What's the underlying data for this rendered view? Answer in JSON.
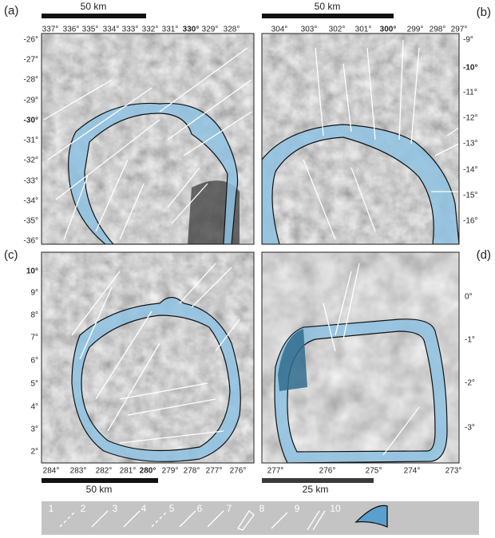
{
  "panels": [
    {
      "label": "(a)",
      "scale_bar": "50 km",
      "longitudes": [
        "337°",
        "336°",
        "335°",
        "334°",
        "333°",
        "332°",
        "331°",
        "330°",
        "329°",
        "328°"
      ],
      "latitudes": [
        "-26°",
        "-27°",
        "-28°",
        "-29°",
        "-30°",
        "-31°",
        "-32°",
        "-33°",
        "-34°",
        "-35°",
        "-36°"
      ]
    },
    {
      "label": "(b)",
      "scale_bar": "50 km",
      "longitudes": [
        "304°",
        "303°",
        "302°",
        "301°",
        "300°",
        "299°",
        "298°",
        "297°"
      ],
      "latitudes": [
        "-9°",
        "-10°",
        "-11°",
        "-12°",
        "-13°",
        "-14°",
        "-15°",
        "-16°"
      ]
    },
    {
      "label": "(c)",
      "scale_bar": "50 km",
      "longitudes": [
        "284°",
        "283°",
        "282°",
        "281°",
        "280°",
        "279°",
        "278°",
        "277°",
        "276°"
      ],
      "latitudes": [
        "10°",
        "9°",
        "8°",
        "7°",
        "6°",
        "5°",
        "4°",
        "3°",
        "2°"
      ]
    },
    {
      "label": "(d)",
      "scale_bar": "25 km",
      "longitudes": [
        "277°",
        "276°",
        "275°",
        "274°",
        "273°"
      ],
      "latitudes": [
        "0°",
        "-1°",
        "-2°",
        "-3°"
      ]
    }
  ],
  "legend": [
    "1",
    "2",
    "3",
    "4",
    "5",
    "6",
    "7",
    "8",
    "9",
    "10"
  ]
}
